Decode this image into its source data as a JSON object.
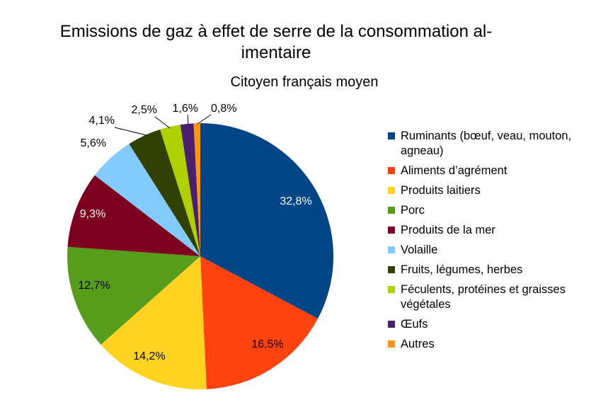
{
  "title": "Emissions de gaz à effet de serre de la consommation al-imentaire",
  "title_lines": [
    "Emissions de gaz à effet de serre de la consommation al-",
    "imentaire"
  ],
  "subtitle": "Citoyen français moyen",
  "chart_data": {
    "type": "pie",
    "title": "Emissions de gaz à effet de serre de la consommation al-imentaire",
    "subtitle": "Citoyen français moyen",
    "legend_position": "right",
    "start": "12 o'clock",
    "direction": "clockwise",
    "slices": [
      {
        "name": "Ruminants (bœuf, veau, mouton, agneau)",
        "value": 32.8,
        "label": "32,8%",
        "color": "#004586"
      },
      {
        "name": "Aliments d’agrément",
        "value": 16.5,
        "label": "16,5%",
        "color": "#ff420e"
      },
      {
        "name": "Produits laitiers",
        "value": 14.2,
        "label": "14,2%",
        "color": "#ffd320"
      },
      {
        "name": "Porc",
        "value": 12.7,
        "label": "12,7%",
        "color": "#579d1c"
      },
      {
        "name": "Produits de la mer",
        "value": 9.3,
        "label": "9,3%",
        "color": "#7e0021"
      },
      {
        "name": "Volaille",
        "value": 5.6,
        "label": "5,6%",
        "color": "#83caff"
      },
      {
        "name": "Fruits, légumes, herbes",
        "value": 4.1,
        "label": "4,1%",
        "color": "#314004"
      },
      {
        "name": "Féculents, protéines et graisses végétales",
        "value": 2.5,
        "label": "2,5%",
        "color": "#aecf00"
      },
      {
        "name": "Œufs",
        "value": 1.6,
        "label": "1,6%",
        "color": "#4b1f6f"
      },
      {
        "name": "Autres",
        "value": 0.8,
        "label": "0,8%",
        "color": "#ff950e"
      }
    ]
  }
}
